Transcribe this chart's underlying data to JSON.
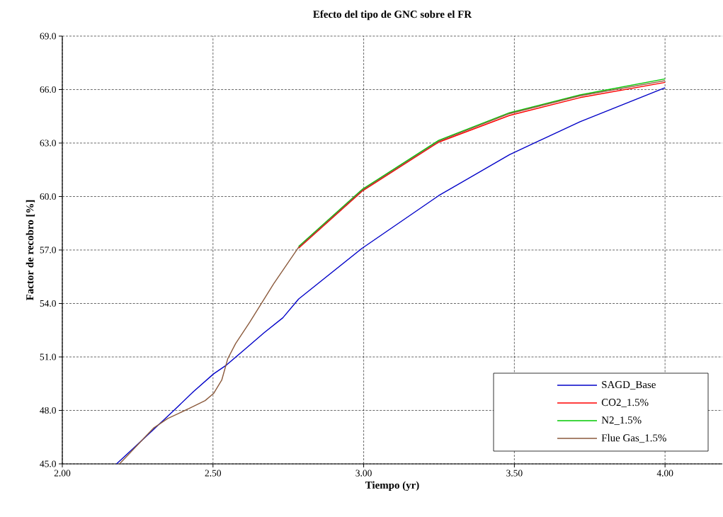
{
  "chart_data": {
    "type": "line",
    "title": "Efecto del tipo de GNC sobre el FR",
    "xlabel": "Tiempo (yr)",
    "ylabel": "Factor de recobro [%]",
    "xlim": [
      2.0,
      4.19
    ],
    "ylim": [
      45.0,
      69.0
    ],
    "xticks": [
      {
        "value": 2.0,
        "label": "2.00"
      },
      {
        "value": 2.5,
        "label": "2.50"
      },
      {
        "value": 3.0,
        "label": "3.00"
      },
      {
        "value": 3.5,
        "label": "3.50"
      },
      {
        "value": 4.0,
        "label": "4.00"
      }
    ],
    "yticks": [
      {
        "value": 45,
        "label": "45.0"
      },
      {
        "value": 48,
        "label": "48.0"
      },
      {
        "value": 51,
        "label": "51.0"
      },
      {
        "value": 54,
        "label": "54.0"
      },
      {
        "value": 57,
        "label": "57.0"
      },
      {
        "value": 60,
        "label": "60.0"
      },
      {
        "value": 63,
        "label": "63.0"
      },
      {
        "value": 66,
        "label": "66.0"
      },
      {
        "value": 69,
        "label": "69.0"
      }
    ],
    "grid": true,
    "legend": "bottom right",
    "marker": "none",
    "line_style": "solid",
    "series": [
      {
        "name": "SAGD_Base",
        "color": "#0000c8",
        "x": [
          2.18,
          2.263,
          2.364,
          2.435,
          2.502,
          2.545,
          2.607,
          2.669,
          2.732,
          2.784,
          2.995,
          3.249,
          3.484,
          3.718,
          4.0
        ],
        "values": [
          45.0,
          46.3,
          47.9,
          49.05,
          50.05,
          50.55,
          51.45,
          52.35,
          53.2,
          54.25,
          57.1,
          60.05,
          62.35,
          64.2,
          66.1
        ]
      },
      {
        "name": "CO2_1.5%",
        "color": "#ff0000",
        "x": [
          2.784,
          2.995,
          3.249,
          3.484,
          3.718,
          4.0
        ],
        "values": [
          57.1,
          60.3,
          63.05,
          64.55,
          65.55,
          66.4
        ]
      },
      {
        "name": "N2_1.5%",
        "color": "#00c800",
        "x": [
          2.784,
          2.995,
          3.249,
          3.484,
          3.718,
          4.0
        ],
        "values": [
          57.2,
          60.4,
          63.15,
          64.7,
          65.7,
          66.6
        ]
      },
      {
        "name": "Flue Gas_1.5%",
        "color": "#8b5a3c",
        "x": [
          2.19,
          2.263,
          2.302,
          2.35,
          2.42,
          2.474,
          2.502,
          2.529,
          2.549,
          2.575,
          2.622,
          2.701,
          2.784,
          2.995,
          3.249,
          3.484,
          3.718,
          4.0
        ],
        "values": [
          45.0,
          46.3,
          47.0,
          47.55,
          48.1,
          48.55,
          48.95,
          49.7,
          50.9,
          51.75,
          52.95,
          55.1,
          57.15,
          60.35,
          63.1,
          64.65,
          65.65,
          66.5
        ]
      }
    ]
  }
}
